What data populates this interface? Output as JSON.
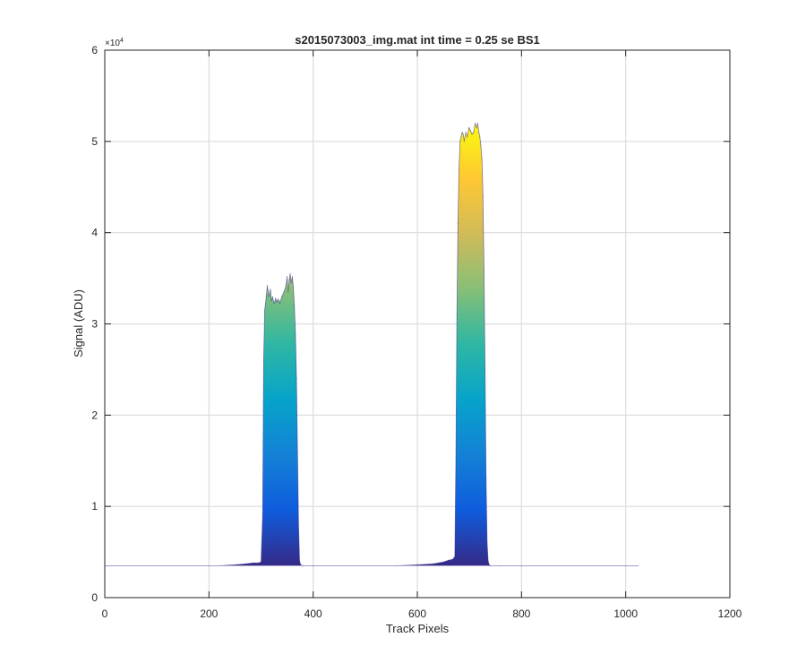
{
  "chart_data": {
    "type": "area",
    "title": "s2015073003_img.mat int time = 0.25 se   BS1",
    "xlabel": "Track Pixels",
    "ylabel": "Signal (ADU)",
    "xlim": [
      0,
      1200
    ],
    "ylim": [
      0,
      6
    ],
    "y_exponent_label": "×10",
    "y_exponent_value": "4",
    "y_multiplier": 10000,
    "grid": true,
    "xticks": [
      0,
      200,
      400,
      600,
      800,
      1000,
      1200
    ],
    "yticks": [
      0,
      1,
      2,
      3,
      4,
      5,
      6
    ],
    "colormap": "parula",
    "colormap_stops": [
      "#352a87",
      "#0f5cdd",
      "#1481d6",
      "#06a4ca",
      "#2eb7a4",
      "#87bf77",
      "#d1bb59",
      "#fec832",
      "#f9fb0e"
    ],
    "baseline": 0.35,
    "series": [
      {
        "x": [
          0,
          220,
          250,
          270,
          285,
          295,
          300,
          303,
          305,
          307,
          310,
          312,
          315,
          318,
          320,
          322,
          325,
          328,
          330,
          333,
          336,
          340,
          344,
          348,
          350,
          352,
          354,
          356,
          358,
          360,
          362,
          364,
          366,
          368,
          370,
          372,
          374,
          376,
          380,
          400,
          560,
          600,
          630,
          650,
          660,
          668,
          672,
          674,
          676,
          678,
          680,
          682,
          684,
          686,
          688,
          690,
          693,
          696,
          699,
          702,
          705,
          708,
          711,
          714,
          716,
          718,
          720,
          722,
          724,
          726,
          728,
          730,
          732,
          734,
          736,
          738,
          740,
          760,
          1024
        ],
        "y": [
          0.35,
          0.35,
          0.36,
          0.37,
          0.38,
          0.38,
          0.39,
          0.9,
          2.6,
          3.15,
          3.3,
          3.42,
          3.3,
          3.38,
          3.25,
          3.3,
          3.22,
          3.28,
          3.24,
          3.27,
          3.23,
          3.3,
          3.35,
          3.42,
          3.52,
          3.35,
          3.48,
          3.55,
          3.45,
          3.52,
          3.4,
          3.2,
          2.9,
          2.4,
          1.6,
          0.8,
          0.4,
          0.36,
          0.35,
          0.35,
          0.35,
          0.36,
          0.37,
          0.39,
          0.41,
          0.42,
          0.45,
          1.5,
          3.1,
          4.1,
          4.7,
          5.0,
          5.05,
          5.1,
          5.08,
          5.0,
          5.1,
          5.05,
          5.15,
          5.12,
          5.08,
          5.1,
          5.2,
          5.15,
          5.2,
          5.1,
          5.05,
          4.95,
          4.8,
          4.4,
          3.6,
          2.5,
          1.3,
          0.6,
          0.4,
          0.36,
          0.35,
          0.35,
          0.35
        ]
      }
    ]
  }
}
